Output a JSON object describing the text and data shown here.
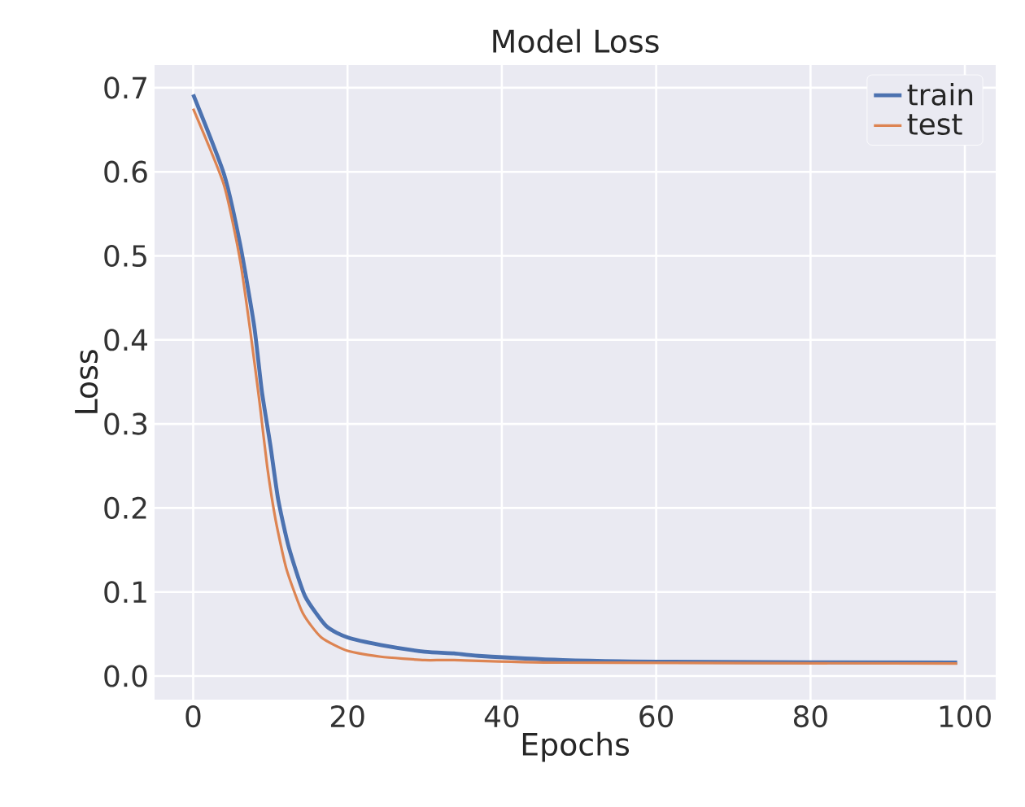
{
  "chart_data": {
    "type": "line",
    "title": "Model Loss",
    "xlabel": "Epochs",
    "ylabel": "Loss",
    "series": [
      {
        "name": "train",
        "color": "#4c72b0",
        "x": [
          0,
          4.0,
          6.1,
          7.9,
          8.9,
          10.0,
          11.0,
          12.4,
          14.5,
          17.3,
          20.0,
          24.3,
          30.0,
          33.8,
          37.0,
          47.9,
          61.9,
          99
        ],
        "values": [
          0.692,
          0.597,
          0.513,
          0.417,
          0.339,
          0.275,
          0.211,
          0.153,
          0.095,
          0.059,
          0.046,
          0.037,
          0.029,
          0.027,
          0.024,
          0.019,
          0.017,
          0.016
        ]
      },
      {
        "name": "test",
        "color": "#dd8452",
        "x": [
          0,
          4.0,
          6.1,
          7.5,
          8.6,
          9.6,
          10.7,
          12.1,
          14.2,
          16.6,
          20.0,
          24.3,
          30.0,
          33.8,
          47.9,
          99
        ],
        "values": [
          0.675,
          0.584,
          0.494,
          0.404,
          0.326,
          0.249,
          0.185,
          0.127,
          0.075,
          0.046,
          0.03,
          0.023,
          0.019,
          0.019,
          0.016,
          0.015
        ]
      }
    ],
    "xlim": [
      -5,
      104
    ],
    "ylim": [
      -0.028,
      0.727
    ],
    "xticks": [
      0,
      20,
      40,
      60,
      80,
      100
    ],
    "yticks": [
      {
        "value": 0,
        "label": "0.0"
      },
      0.1,
      0.2,
      0.3,
      0.4,
      0.5,
      0.6,
      0.7
    ],
    "grid": true,
    "legend": "top right",
    "line_style": "solid",
    "marker": "none"
  }
}
